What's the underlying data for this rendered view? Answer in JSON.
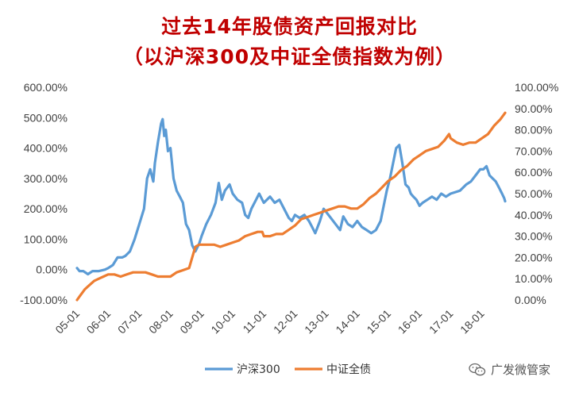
{
  "title": {
    "line1": "过去14年股债资产回报对比",
    "line2": "（以沪深300及中证全债指数为例）"
  },
  "watermark": {
    "text": "广发微管家",
    "icon": "wechat-icon"
  },
  "chart_data": {
    "type": "line",
    "title": "过去14年股债资产回报对比",
    "subtitle": "（以沪深300及中证全债指数为例）",
    "x_ticks": [
      "05-01",
      "06-01",
      "07-01",
      "08-01",
      "09-01",
      "10-01",
      "11-01",
      "12-01",
      "13-01",
      "14-01",
      "15-01",
      "16-01",
      "17-01",
      "18-01"
    ],
    "x_range": [
      2005.0,
      2018.75
    ],
    "y_left": {
      "range": [
        -100,
        600
      ],
      "ticks": [
        "600.00%",
        "500.00%",
        "400.00%",
        "300.00%",
        "200.00%",
        "100.00%",
        "0.00%",
        "-100.00%"
      ]
    },
    "y_right": {
      "range": [
        0,
        100
      ],
      "ticks": [
        "100.00%",
        "90.00%",
        "80.00%",
        "70.00%",
        "60.00%",
        "50.00%",
        "40.00%",
        "30.00%",
        "20.00%",
        "10.00%",
        "0.00%"
      ]
    },
    "grid": false,
    "legend": "bottom",
    "series": [
      {
        "name": "沪深300",
        "axis": "left",
        "color": "#5b9bd5",
        "points": [
          [
            2005.0,
            5
          ],
          [
            2005.08,
            -5
          ],
          [
            2005.2,
            -5
          ],
          [
            2005.35,
            -15
          ],
          [
            2005.5,
            -5
          ],
          [
            2005.7,
            -5
          ],
          [
            2005.9,
            0
          ],
          [
            2006.0,
            5
          ],
          [
            2006.15,
            15
          ],
          [
            2006.3,
            40
          ],
          [
            2006.45,
            40
          ],
          [
            2006.55,
            45
          ],
          [
            2006.7,
            60
          ],
          [
            2006.85,
            100
          ],
          [
            2007.0,
            150
          ],
          [
            2007.15,
            200
          ],
          [
            2007.25,
            300
          ],
          [
            2007.35,
            330
          ],
          [
            2007.45,
            290
          ],
          [
            2007.5,
            350
          ],
          [
            2007.6,
            420
          ],
          [
            2007.7,
            480
          ],
          [
            2007.75,
            495
          ],
          [
            2007.8,
            440
          ],
          [
            2007.85,
            460
          ],
          [
            2007.92,
            390
          ],
          [
            2008.0,
            400
          ],
          [
            2008.1,
            300
          ],
          [
            2008.2,
            260
          ],
          [
            2008.3,
            240
          ],
          [
            2008.4,
            220
          ],
          [
            2008.5,
            150
          ],
          [
            2008.6,
            130
          ],
          [
            2008.7,
            80
          ],
          [
            2008.8,
            60
          ],
          [
            2008.92,
            85
          ],
          [
            2009.0,
            110
          ],
          [
            2009.15,
            150
          ],
          [
            2009.3,
            180
          ],
          [
            2009.45,
            220
          ],
          [
            2009.55,
            285
          ],
          [
            2009.65,
            230
          ],
          [
            2009.75,
            260
          ],
          [
            2009.9,
            280
          ],
          [
            2010.0,
            250
          ],
          [
            2010.15,
            230
          ],
          [
            2010.3,
            220
          ],
          [
            2010.4,
            180
          ],
          [
            2010.5,
            170
          ],
          [
            2010.6,
            200
          ],
          [
            2010.75,
            230
          ],
          [
            2010.85,
            250
          ],
          [
            2010.95,
            230
          ],
          [
            2011.0,
            220
          ],
          [
            2011.2,
            240
          ],
          [
            2011.35,
            220
          ],
          [
            2011.5,
            230
          ],
          [
            2011.65,
            200
          ],
          [
            2011.8,
            170
          ],
          [
            2011.9,
            160
          ],
          [
            2012.0,
            180
          ],
          [
            2012.15,
            170
          ],
          [
            2012.3,
            180
          ],
          [
            2012.45,
            160
          ],
          [
            2012.55,
            140
          ],
          [
            2012.65,
            120
          ],
          [
            2012.8,
            160
          ],
          [
            2012.92,
            200
          ],
          [
            2013.0,
            190
          ],
          [
            2013.15,
            170
          ],
          [
            2013.3,
            150
          ],
          [
            2013.45,
            130
          ],
          [
            2013.55,
            175
          ],
          [
            2013.7,
            150
          ],
          [
            2013.85,
            140
          ],
          [
            2014.0,
            160
          ],
          [
            2014.15,
            140
          ],
          [
            2014.3,
            130
          ],
          [
            2014.45,
            120
          ],
          [
            2014.6,
            130
          ],
          [
            2014.75,
            160
          ],
          [
            2014.85,
            210
          ],
          [
            2014.95,
            260
          ],
          [
            2015.05,
            300
          ],
          [
            2015.15,
            350
          ],
          [
            2015.25,
            400
          ],
          [
            2015.35,
            410
          ],
          [
            2015.45,
            350
          ],
          [
            2015.55,
            280
          ],
          [
            2015.65,
            270
          ],
          [
            2015.72,
            250
          ],
          [
            2015.8,
            240
          ],
          [
            2015.9,
            230
          ],
          [
            2016.0,
            210
          ],
          [
            2016.1,
            220
          ],
          [
            2016.25,
            230
          ],
          [
            2016.4,
            240
          ],
          [
            2016.55,
            230
          ],
          [
            2016.7,
            250
          ],
          [
            2016.85,
            240
          ],
          [
            2017.0,
            250
          ],
          [
            2017.15,
            255
          ],
          [
            2017.3,
            260
          ],
          [
            2017.5,
            280
          ],
          [
            2017.65,
            290
          ],
          [
            2017.8,
            310
          ],
          [
            2017.95,
            330
          ],
          [
            2018.05,
            330
          ],
          [
            2018.15,
            340
          ],
          [
            2018.25,
            310
          ],
          [
            2018.35,
            300
          ],
          [
            2018.45,
            290
          ],
          [
            2018.55,
            270
          ],
          [
            2018.65,
            250
          ],
          [
            2018.72,
            235
          ],
          [
            2018.75,
            225
          ]
        ]
      },
      {
        "name": "中证全债",
        "axis": "right",
        "color": "#ed7d31",
        "points": [
          [
            2005.0,
            0
          ],
          [
            2005.1,
            2
          ],
          [
            2005.25,
            5
          ],
          [
            2005.4,
            7
          ],
          [
            2005.55,
            9
          ],
          [
            2005.7,
            10
          ],
          [
            2005.85,
            11
          ],
          [
            2006.0,
            12
          ],
          [
            2006.2,
            12
          ],
          [
            2006.4,
            11
          ],
          [
            2006.6,
            12
          ],
          [
            2006.8,
            13
          ],
          [
            2007.0,
            13
          ],
          [
            2007.2,
            13
          ],
          [
            2007.4,
            12
          ],
          [
            2007.6,
            11
          ],
          [
            2007.8,
            11
          ],
          [
            2008.0,
            11
          ],
          [
            2008.2,
            13
          ],
          [
            2008.4,
            14
          ],
          [
            2008.6,
            15
          ],
          [
            2008.7,
            20
          ],
          [
            2008.8,
            25
          ],
          [
            2008.92,
            26
          ],
          [
            2009.0,
            26
          ],
          [
            2009.2,
            26
          ],
          [
            2009.4,
            26
          ],
          [
            2009.6,
            25
          ],
          [
            2009.8,
            26
          ],
          [
            2010.0,
            27
          ],
          [
            2010.2,
            28
          ],
          [
            2010.4,
            30
          ],
          [
            2010.6,
            31
          ],
          [
            2010.8,
            32
          ],
          [
            2010.95,
            32
          ],
          [
            2011.0,
            30
          ],
          [
            2011.2,
            30
          ],
          [
            2011.4,
            31
          ],
          [
            2011.6,
            31
          ],
          [
            2011.8,
            33
          ],
          [
            2012.0,
            35
          ],
          [
            2012.2,
            38
          ],
          [
            2012.4,
            39
          ],
          [
            2012.6,
            40
          ],
          [
            2012.8,
            41
          ],
          [
            2013.0,
            42
          ],
          [
            2013.2,
            43
          ],
          [
            2013.4,
            44
          ],
          [
            2013.6,
            44
          ],
          [
            2013.8,
            43
          ],
          [
            2014.0,
            43
          ],
          [
            2014.2,
            45
          ],
          [
            2014.4,
            48
          ],
          [
            2014.6,
            50
          ],
          [
            2014.8,
            53
          ],
          [
            2015.0,
            56
          ],
          [
            2015.2,
            58
          ],
          [
            2015.4,
            61
          ],
          [
            2015.6,
            63
          ],
          [
            2015.8,
            66
          ],
          [
            2016.0,
            68
          ],
          [
            2016.2,
            70
          ],
          [
            2016.4,
            71
          ],
          [
            2016.6,
            72
          ],
          [
            2016.8,
            75
          ],
          [
            2016.95,
            78
          ],
          [
            2017.0,
            76
          ],
          [
            2017.2,
            74
          ],
          [
            2017.4,
            73
          ],
          [
            2017.6,
            74
          ],
          [
            2017.8,
            74
          ],
          [
            2018.0,
            76
          ],
          [
            2018.2,
            78
          ],
          [
            2018.4,
            82
          ],
          [
            2018.6,
            85
          ],
          [
            2018.75,
            88
          ]
        ]
      }
    ]
  }
}
